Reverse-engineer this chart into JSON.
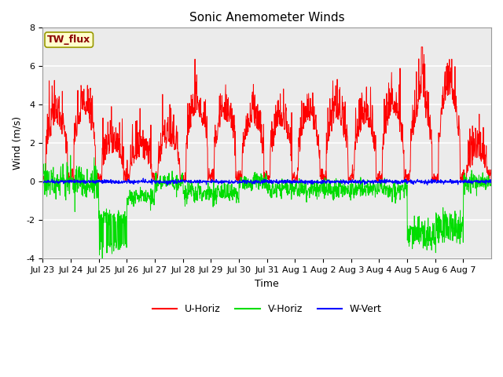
{
  "title": "Sonic Anemometer Winds",
  "xlabel": "Time",
  "ylabel": "Wind (m/s)",
  "ylim": [
    -4,
    8
  ],
  "yticks": [
    -4,
    -2,
    0,
    2,
    4,
    6,
    8
  ],
  "station_label": "TW_flux",
  "legend_entries": [
    "U-Horiz",
    "V-Horiz",
    "W-Vert"
  ],
  "line_colors": [
    "red",
    "#00dd00",
    "blue"
  ],
  "xtick_labels": [
    "Jul 23",
    "Jul 24",
    "Jul 25",
    "Jul 26",
    "Jul 27",
    "Jul 28",
    "Jul 29",
    "Jul 30",
    "Jul 31",
    "Aug 1",
    "Aug 2",
    "Aug 3",
    "Aug 4",
    "Aug 5",
    "Aug 6",
    "Aug 7"
  ],
  "plot_bg_color": "#ebebeb",
  "grid_color": "white",
  "title_fontsize": 11,
  "axis_label_fontsize": 9,
  "tick_label_fontsize": 8,
  "legend_fontsize": 9
}
